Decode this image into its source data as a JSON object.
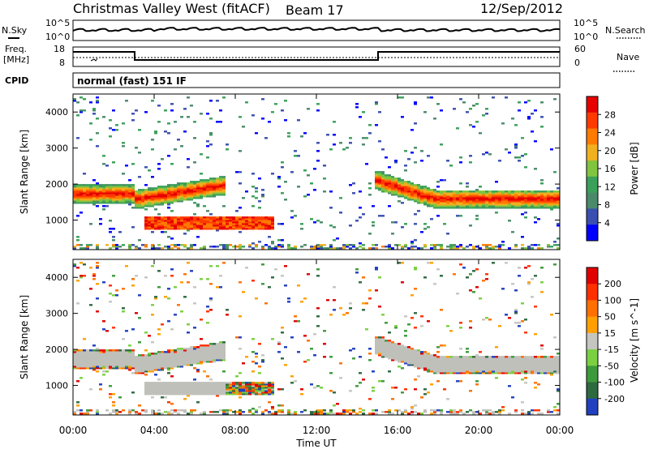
{
  "header": {
    "station": "Christmas Valley West (fitACF)",
    "beam": "Beam 17",
    "date": "12/Sep/2012"
  },
  "status_panels": {
    "nsky_label": "N.Sky",
    "nsearch_label": "N.Search",
    "noise_tick_hi": "10^5",
    "noise_tick_lo": "10^0",
    "freq_label_1": "Freq.",
    "freq_label_2": "[MHz]",
    "freq_ticks": [
      "18",
      "8"
    ],
    "nave_label": "Nave",
    "nave_ticks": [
      "60",
      "0"
    ],
    "cpid_label": "CPID",
    "cpid_value": "normal (fast) 151 IF"
  },
  "colors": {
    "power_scale": [
      "#0000ff",
      "#3a4fb0",
      "#4a8a6a",
      "#3aa05a",
      "#80c440",
      "#f0b020",
      "#ff7a00",
      "#ff3a00",
      "#e60000"
    ],
    "velocity_scale": [
      "#2040c0",
      "#2e6a40",
      "#3c9a3c",
      "#7ad040",
      "#c6c6c0",
      "#ffa000",
      "#ff7000",
      "#ff3000",
      "#e00000"
    ],
    "ground_scatter": "#c0c0bb"
  },
  "chart_data": [
    {
      "type": "heatmap",
      "name": "Power panel",
      "xlabel": "",
      "ylabel": "Slant Range [km]",
      "x_ticks": [
        "00:00",
        "04:00",
        "08:00",
        "12:00",
        "16:00",
        "20:00",
        "00:00"
      ],
      "x_hours": [
        0,
        4,
        8,
        12,
        16,
        20,
        24
      ],
      "y_ticks": [
        1000,
        2000,
        3000,
        4000
      ],
      "ylim": [
        180,
        4500
      ],
      "xlim": [
        0,
        24
      ],
      "colorbar_label": "Power [dB]",
      "colorbar_ticks": [
        "28",
        "24",
        "20",
        "16",
        "12",
        "8",
        "4"
      ],
      "features": [
        {
          "desc": "main echo band",
          "hours": [
            0,
            3
          ],
          "range_km": [
            1450,
            1900
          ],
          "level": "high"
        },
        {
          "desc": "band after 03:00",
          "hours": [
            3,
            7.5
          ],
          "range_km": [
            1250,
            2000
          ],
          "level": "high"
        },
        {
          "desc": "daytime patch",
          "hours": [
            3.5,
            9.8
          ],
          "range_km": [
            700,
            1100
          ],
          "level": "high"
        },
        {
          "desc": "evening band",
          "hours": [
            14.8,
            24
          ],
          "range_km": [
            1400,
            2200
          ],
          "level": "high"
        }
      ]
    },
    {
      "type": "heatmap",
      "name": "Velocity panel",
      "xlabel": "Time UT",
      "ylabel": "Slant Range [km]",
      "x_ticks": [
        "00:00",
        "04:00",
        "08:00",
        "12:00",
        "16:00",
        "20:00",
        "00:00"
      ],
      "x_hours": [
        0,
        4,
        8,
        12,
        16,
        20,
        24
      ],
      "y_ticks": [
        1000,
        2000,
        3000,
        4000
      ],
      "ylim": [
        180,
        4500
      ],
      "xlim": [
        0,
        24
      ],
      "colorbar_label": "Velocity [m s^-1]",
      "colorbar_ticks": [
        "200",
        "100",
        "50",
        "15",
        "-15",
        "-50",
        "-100",
        "-200"
      ]
    }
  ]
}
